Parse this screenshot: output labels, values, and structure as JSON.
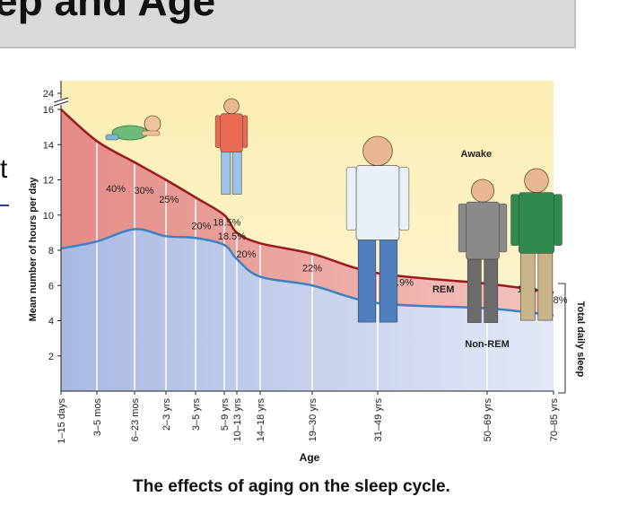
{
  "slide": {
    "title_fragment": "ep and Age",
    "edge_glyph": "t",
    "caption": "The effects of aging on the sleep cycle."
  },
  "chart_data": {
    "type": "area",
    "xlabel": "Age",
    "ylabel": "Mean number of hours per day",
    "right_label": "Total daily sleep",
    "categories": [
      "1–15 days",
      "3–5 mos",
      "6–23 mos",
      "2–3 yrs",
      "3–5 yrs",
      "5–9 yrs",
      "10–13 yrs",
      "14–18 yrs",
      "19–30 yrs",
      "31–49 yrs",
      "50–69 yrs",
      "70–85 yrs"
    ],
    "y_ticks": [
      2,
      4,
      6,
      8,
      10,
      12,
      14,
      16,
      24
    ],
    "ylim": [
      0,
      16
    ],
    "axis_break": "16–24",
    "total_sleep": [
      16,
      14.2,
      13,
      12,
      11,
      10,
      9,
      8.4,
      7.8,
      6.7,
      6.1,
      5.6
    ],
    "non_rem": [
      8.1,
      8.5,
      9.2,
      8.8,
      8.7,
      8.3,
      7.5,
      6.5,
      6,
      5,
      4.7,
      4.3
    ],
    "rem_percent_labels": [
      {
        "text": "40%",
        "x": 1.5,
        "y": 11.3
      },
      {
        "text": "30%",
        "x": 2.3,
        "y": 11.2
      },
      {
        "text": "25%",
        "x": 3.1,
        "y": 10.7
      },
      {
        "text": "20%",
        "x": 4.2,
        "y": 9.2
      },
      {
        "text": "18.5%",
        "x": 5.2,
        "y": 9.4
      },
      {
        "text": "18.5%",
        "x": 5.6,
        "y": 8.6
      },
      {
        "text": "20%",
        "x": 6.4,
        "y": 7.6
      },
      {
        "text": "22%",
        "x": 8.0,
        "y": 6.8
      },
      {
        "text": "18.9%",
        "x": 9.2,
        "y": 6.0
      },
      {
        "text": "15%",
        "x": 10.6,
        "y": 5.6
      },
      {
        "text": "13.8%",
        "x": 11.6,
        "y": 5.0
      }
    ],
    "region_labels": [
      {
        "text": "Awake",
        "x": 9.9,
        "y": 13.3
      },
      {
        "text": "REM",
        "x": 9.6,
        "y": 5.6
      },
      {
        "text": "Non-REM",
        "x": 10.0,
        "y": 2.5
      }
    ],
    "colors": {
      "awake": "#fcf2c2",
      "rem": "#eba9a3",
      "non_rem": "#c3cde9",
      "total_line": "#9b1a1f",
      "non_rem_line": "#3b82c4"
    }
  }
}
